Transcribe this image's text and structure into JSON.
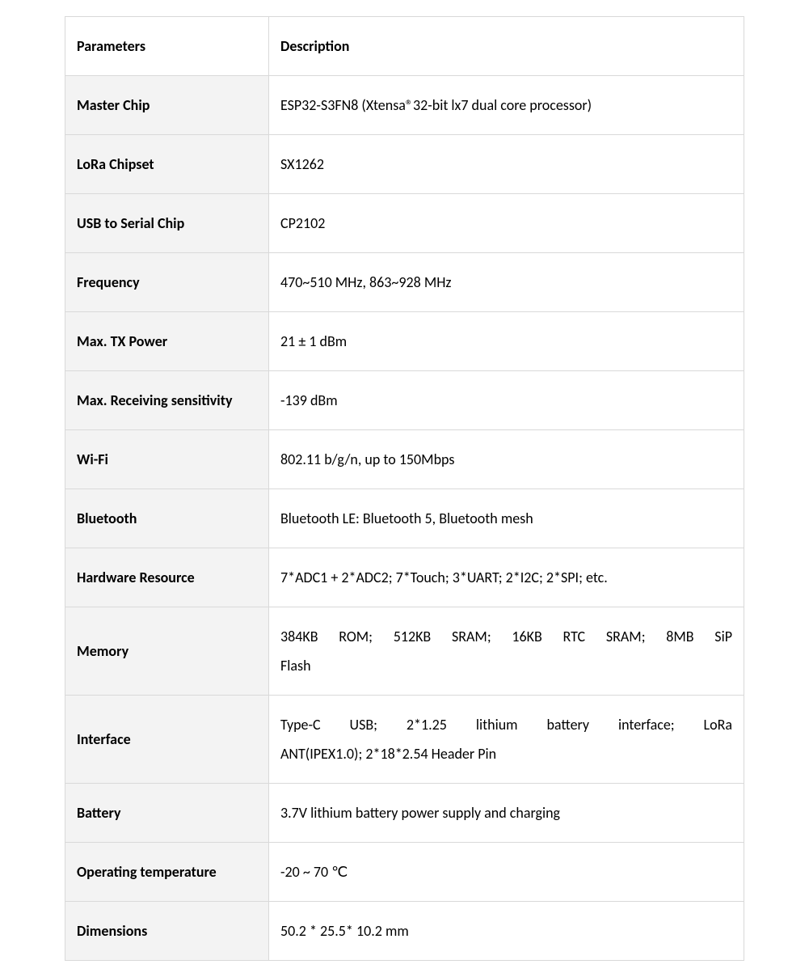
{
  "table": {
    "header": {
      "parameters": "Parameters",
      "description": "Description"
    },
    "rows": [
      {
        "param": "Master Chip",
        "desc": "ESP32-S3FN8 (Xtensa®32-bit lx7 dual core processor)",
        "justify": false
      },
      {
        "param": "LoRa Chipset",
        "desc": "SX1262",
        "justify": false
      },
      {
        "param": "USB to Serial Chip",
        "desc": "CP2102",
        "justify": false
      },
      {
        "param": "Frequency",
        "desc": "470~510 MHz, 863~928 MHz",
        "justify": false
      },
      {
        "param": "Max. TX Power",
        "desc": "21 ± 1 dBm",
        "justify": false
      },
      {
        "param": "Max. Receiving sensitivity",
        "desc": "-139 dBm",
        "justify": false
      },
      {
        "param": "Wi-Fi",
        "desc": "802.11 b/g/n, up to 150Mbps",
        "justify": false
      },
      {
        "param": "Bluetooth",
        "desc": "Bluetooth LE: Bluetooth 5, Bluetooth mesh",
        "justify": false
      },
      {
        "param": "Hardware Resource",
        "desc": "7*ADC1 + 2*ADC2; 7*Touch; 3*UART; 2*I2C; 2*SPI; etc.",
        "justify": false
      },
      {
        "param": "Memory",
        "desc": "384KB ROM; 512KB SRAM; 16KB RTC SRAM; 8MB SiP",
        "desc_last": "Flash",
        "justify": true
      },
      {
        "param": "Interface",
        "desc": "Type-C USB; 2*1.25 lithium battery interface; LoRa",
        "desc_last": "ANT(IPEX1.0); 2*18*2.54 Header Pin",
        "justify": true
      },
      {
        "param": "Battery",
        "desc": "3.7V lithium battery power supply and charging",
        "justify": false
      },
      {
        "param": "Operating temperature",
        "desc": "-20 ~ 70  ℃",
        "justify": false
      },
      {
        "param": "Dimensions",
        "desc": "50.2 * 25.5* 10.2 mm",
        "justify": false
      }
    ]
  },
  "colors": {
    "border": "#d9d9d9",
    "param_bg": "#f3f3f3",
    "desc_bg": "#ffffff",
    "text": "#000000"
  }
}
